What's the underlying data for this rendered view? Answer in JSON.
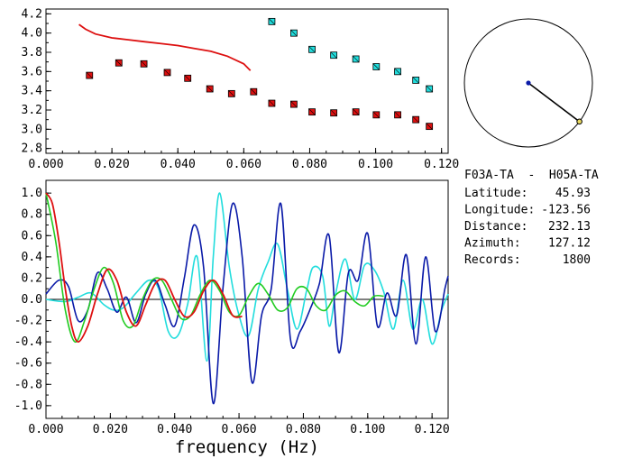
{
  "station_pair": "F03A-TA  -  H05A-TA",
  "info_rows": [
    {
      "label": "Latitude:",
      "value": "45.93"
    },
    {
      "label": "Longitude:",
      "value": "-123.56"
    },
    {
      "label": "Distance:",
      "value": "232.13"
    },
    {
      "label": "Azimuth:",
      "value": "127.12"
    },
    {
      "label": "Records:",
      "value": "1800"
    }
  ],
  "colors": {
    "red": "#dd1010",
    "cyan": "#22dddd",
    "blue": "#0a1aa8",
    "green": "#22cc22",
    "black": "#000000",
    "marker_fill_red": "#dd1010",
    "marker_fill_cyan": "#33dddd",
    "endpoint": "#e8d860"
  },
  "chart_data": [
    {
      "type": "scatter",
      "xlabel": "",
      "ylabel": "",
      "xlim": [
        0.0,
        0.122
      ],
      "ylim": [
        2.75,
        4.25
      ],
      "x_ticks": [
        "0.000",
        "0.020",
        "0.040",
        "0.060",
        "0.080",
        "0.100",
        "0.120"
      ],
      "y_ticks": [
        "2.8",
        "3.0",
        "3.2",
        "3.4",
        "3.6",
        "3.8",
        "4.0",
        "4.2"
      ],
      "series": [
        {
          "color": "#dd1010",
          "kind": "line",
          "x": [
            0.01,
            0.012,
            0.015,
            0.02,
            0.025,
            0.03,
            0.035,
            0.04,
            0.045,
            0.05,
            0.055,
            0.06,
            0.062
          ],
          "y": [
            4.09,
            4.04,
            3.99,
            3.95,
            3.93,
            3.91,
            3.89,
            3.87,
            3.84,
            3.81,
            3.76,
            3.68,
            3.61
          ]
        },
        {
          "color": "#dd1010",
          "kind": "markers",
          "x": [
            0.0132,
            0.0221,
            0.0297,
            0.0368,
            0.043,
            0.0497,
            0.0563,
            0.063,
            0.0685,
            0.0752,
            0.0807,
            0.0873,
            0.094,
            0.1002,
            0.1067,
            0.1122,
            0.1163
          ],
          "y": [
            3.56,
            3.69,
            3.68,
            3.59,
            3.53,
            3.42,
            3.37,
            3.39,
            3.27,
            3.26,
            3.18,
            3.17,
            3.18,
            3.15,
            3.15,
            3.1,
            3.03
          ]
        },
        {
          "color": "#22dddd",
          "kind": "markers",
          "x": [
            0.0685,
            0.0752,
            0.0807,
            0.0873,
            0.094,
            0.1002,
            0.1067,
            0.1122,
            0.1163
          ],
          "y": [
            4.12,
            4.0,
            3.83,
            3.77,
            3.73,
            3.65,
            3.6,
            3.51,
            3.42
          ]
        }
      ]
    },
    {
      "type": "line",
      "xlabel": "frequency (Hz)",
      "ylabel": "",
      "xlim": [
        0.0,
        0.125
      ],
      "ylim": [
        -1.12,
        1.12
      ],
      "x_ticks": [
        "0.000",
        "0.020",
        "0.040",
        "0.060",
        "0.080",
        "0.100",
        "0.120"
      ],
      "y_ticks": [
        "1.0",
        "0.8",
        "0.6",
        "0.4",
        "0.2",
        "0.0",
        "-0.2",
        "-0.4",
        "-0.6",
        "-0.8",
        "-1.0"
      ],
      "series": [
        {
          "color": "#22dddd",
          "x": [
            0.0,
            0.006,
            0.01,
            0.014,
            0.018,
            0.021,
            0.024,
            0.028,
            0.032,
            0.035,
            0.038,
            0.041,
            0.044,
            0.047,
            0.05,
            0.052,
            0.054,
            0.057,
            0.06,
            0.063,
            0.066,
            0.069,
            0.072,
            0.075,
            0.078,
            0.081,
            0.083,
            0.086,
            0.088,
            0.09,
            0.093,
            0.096,
            0.099,
            0.102,
            0.105,
            0.108,
            0.111,
            0.114,
            0.117,
            0.12,
            0.123,
            0.125
          ],
          "y": [
            0.0,
            -0.02,
            0.02,
            0.06,
            -0.05,
            -0.1,
            -0.08,
            0.06,
            0.18,
            0.1,
            -0.3,
            -0.34,
            -0.05,
            0.4,
            -0.58,
            0.4,
            1.0,
            0.3,
            -0.15,
            -0.34,
            0.1,
            0.35,
            0.52,
            0.1,
            -0.28,
            0.08,
            0.3,
            0.22,
            -0.25,
            0.05,
            0.38,
            0.0,
            0.32,
            0.28,
            0.07,
            -0.28,
            0.18,
            -0.28,
            0.0,
            -0.42,
            -0.1,
            0.05
          ]
        },
        {
          "color": "#0a1aa8",
          "x": [
            0.0,
            0.004,
            0.007,
            0.01,
            0.013,
            0.016,
            0.019,
            0.022,
            0.025,
            0.028,
            0.031,
            0.034,
            0.037,
            0.04,
            0.043,
            0.046,
            0.049,
            0.052,
            0.055,
            0.058,
            0.061,
            0.064,
            0.067,
            0.07,
            0.073,
            0.076,
            0.079,
            0.082,
            0.085,
            0.088,
            0.091,
            0.094,
            0.097,
            0.1,
            0.103,
            0.106,
            0.109,
            0.112,
            0.115,
            0.118,
            0.121,
            0.124,
            0.125
          ],
          "y": [
            0.05,
            0.18,
            0.12,
            -0.2,
            -0.1,
            0.25,
            0.1,
            -0.12,
            0.02,
            -0.22,
            0.05,
            0.18,
            -0.05,
            -0.25,
            0.2,
            0.7,
            0.3,
            -0.98,
            0.1,
            0.9,
            0.4,
            -0.78,
            -0.15,
            0.1,
            0.9,
            -0.38,
            -0.3,
            -0.1,
            0.15,
            0.6,
            -0.5,
            0.25,
            0.18,
            0.62,
            -0.25,
            0.06,
            -0.15,
            0.42,
            -0.42,
            0.4,
            -0.3,
            0.1,
            0.22
          ]
        },
        {
          "color": "#22cc22",
          "x": [
            0.0,
            0.003,
            0.006,
            0.009,
            0.012,
            0.015,
            0.018,
            0.021,
            0.024,
            0.027,
            0.03,
            0.033,
            0.036,
            0.039,
            0.042,
            0.045,
            0.048,
            0.051,
            0.054,
            0.057,
            0.06,
            0.063,
            0.066,
            0.069,
            0.072,
            0.075,
            0.078,
            0.081,
            0.084,
            0.087,
            0.09,
            0.093,
            0.096,
            0.099,
            0.102,
            0.105
          ],
          "y": [
            1.0,
            0.55,
            -0.1,
            -0.4,
            -0.2,
            0.1,
            0.3,
            0.15,
            -0.2,
            -0.25,
            0.0,
            0.18,
            0.18,
            0.0,
            -0.18,
            -0.15,
            0.05,
            0.18,
            0.08,
            -0.12,
            -0.15,
            0.03,
            0.15,
            0.05,
            -0.1,
            -0.08,
            0.1,
            0.1,
            -0.06,
            -0.1,
            0.04,
            0.08,
            -0.02,
            -0.06,
            0.03,
            0.03
          ]
        },
        {
          "color": "#dd1010",
          "x": [
            0.0,
            0.002,
            0.004,
            0.006,
            0.008,
            0.01,
            0.013,
            0.016,
            0.019,
            0.022,
            0.025,
            0.028,
            0.031,
            0.034,
            0.037,
            0.04,
            0.043,
            0.046,
            0.049,
            0.052,
            0.055,
            0.058,
            0.061
          ],
          "y": [
            1.0,
            0.9,
            0.55,
            0.1,
            -0.25,
            -0.4,
            -0.25,
            0.05,
            0.28,
            0.18,
            -0.12,
            -0.25,
            -0.05,
            0.15,
            0.18,
            0.0,
            -0.16,
            -0.12,
            0.08,
            0.18,
            0.05,
            -0.15,
            -0.16
          ]
        }
      ]
    }
  ],
  "azimuth_plot": {
    "azimuth_deg": 127.12,
    "center_dot_color": "#0a1aa8",
    "endpoint_color": "#e8d860"
  }
}
